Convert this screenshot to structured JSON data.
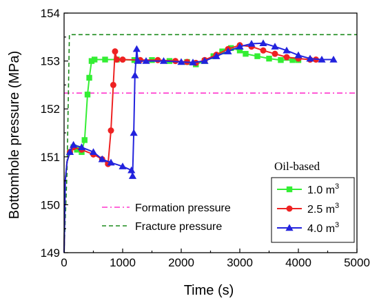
{
  "chart_data": {
    "type": "line",
    "xlabel": "Time (s)",
    "ylabel": "Bottomhole pressure (MPa)",
    "xlim": [
      0,
      5000
    ],
    "ylim": [
      149,
      154
    ],
    "xticks": [
      0,
      1000,
      2000,
      3000,
      4000,
      5000
    ],
    "yticks": [
      149,
      150,
      151,
      152,
      153,
      154
    ],
    "grid": false,
    "reference_lines": [
      {
        "name": "Formation pressure",
        "y": 152.33,
        "color": "#ff33cc",
        "style": "dash-dot"
      },
      {
        "name": "Fracture pressure",
        "y": 153.55,
        "color": "#1a8a1a",
        "style": "dashed",
        "points": [
          [
            0,
            149.0
          ],
          [
            50,
            150.7
          ],
          [
            90,
            153.55
          ],
          [
            5000,
            153.55
          ]
        ]
      }
    ],
    "legend_title": "Oil-based",
    "legend_unit": "m",
    "legend_unit_sup": "3",
    "series": [
      {
        "name": "1.0",
        "color": "#33ee33",
        "marker": "square",
        "points": [
          [
            0,
            149.0
          ],
          [
            20,
            150.5
          ],
          [
            50,
            150.9
          ],
          [
            100,
            151.1
          ],
          [
            160,
            151.2
          ],
          [
            220,
            151.15
          ],
          [
            300,
            151.1
          ],
          [
            350,
            151.35
          ],
          [
            400,
            152.3
          ],
          [
            430,
            152.65
          ],
          [
            470,
            153.0
          ],
          [
            520,
            153.03
          ],
          [
            700,
            153.03
          ],
          [
            900,
            153.03
          ],
          [
            1200,
            153.02
          ],
          [
            1500,
            153.02
          ],
          [
            1800,
            153.0
          ],
          [
            2100,
            152.98
          ],
          [
            2250,
            152.93
          ],
          [
            2400,
            153.0
          ],
          [
            2550,
            153.1
          ],
          [
            2700,
            153.2
          ],
          [
            2850,
            153.27
          ],
          [
            3000,
            153.22
          ],
          [
            3100,
            153.15
          ],
          [
            3300,
            153.1
          ],
          [
            3500,
            153.05
          ],
          [
            3700,
            153.02
          ],
          [
            3900,
            153.02
          ],
          [
            4000,
            153.02
          ]
        ]
      },
      {
        "name": "2.5",
        "color": "#ee2222",
        "marker": "circle",
        "points": [
          [
            0,
            149.0
          ],
          [
            20,
            150.5
          ],
          [
            50,
            150.9
          ],
          [
            100,
            151.1
          ],
          [
            160,
            151.2
          ],
          [
            300,
            151.15
          ],
          [
            500,
            151.05
          ],
          [
            650,
            150.95
          ],
          [
            750,
            150.85
          ],
          [
            800,
            151.55
          ],
          [
            840,
            152.5
          ],
          [
            870,
            153.2
          ],
          [
            900,
            153.03
          ],
          [
            1000,
            153.03
          ],
          [
            1300,
            153.02
          ],
          [
            1600,
            153.02
          ],
          [
            1900,
            153.0
          ],
          [
            2100,
            152.98
          ],
          [
            2250,
            152.96
          ],
          [
            2400,
            153.02
          ],
          [
            2600,
            153.13
          ],
          [
            2800,
            153.25
          ],
          [
            3000,
            153.33
          ],
          [
            3200,
            153.3
          ],
          [
            3400,
            153.22
          ],
          [
            3600,
            153.15
          ],
          [
            3800,
            153.08
          ],
          [
            4000,
            153.05
          ],
          [
            4200,
            153.03
          ],
          [
            4300,
            153.03
          ]
        ]
      },
      {
        "name": "4.0",
        "color": "#2222dd",
        "marker": "triangle",
        "points": [
          [
            0,
            149.0
          ],
          [
            20,
            150.5
          ],
          [
            50,
            150.9
          ],
          [
            100,
            151.1
          ],
          [
            160,
            151.25
          ],
          [
            300,
            151.2
          ],
          [
            500,
            151.1
          ],
          [
            650,
            150.95
          ],
          [
            800,
            150.88
          ],
          [
            1000,
            150.8
          ],
          [
            1150,
            150.72
          ],
          [
            1170,
            150.6
          ],
          [
            1190,
            151.5
          ],
          [
            1210,
            152.7
          ],
          [
            1240,
            153.25
          ],
          [
            1260,
            153.0
          ],
          [
            1400,
            153.0
          ],
          [
            1700,
            153.0
          ],
          [
            2000,
            152.98
          ],
          [
            2200,
            152.97
          ],
          [
            2400,
            153.0
          ],
          [
            2600,
            153.1
          ],
          [
            2800,
            153.2
          ],
          [
            3000,
            153.3
          ],
          [
            3200,
            153.36
          ],
          [
            3400,
            153.37
          ],
          [
            3600,
            153.3
          ],
          [
            3800,
            153.22
          ],
          [
            4000,
            153.12
          ],
          [
            4200,
            153.05
          ],
          [
            4400,
            153.03
          ],
          [
            4600,
            153.03
          ]
        ]
      }
    ]
  }
}
